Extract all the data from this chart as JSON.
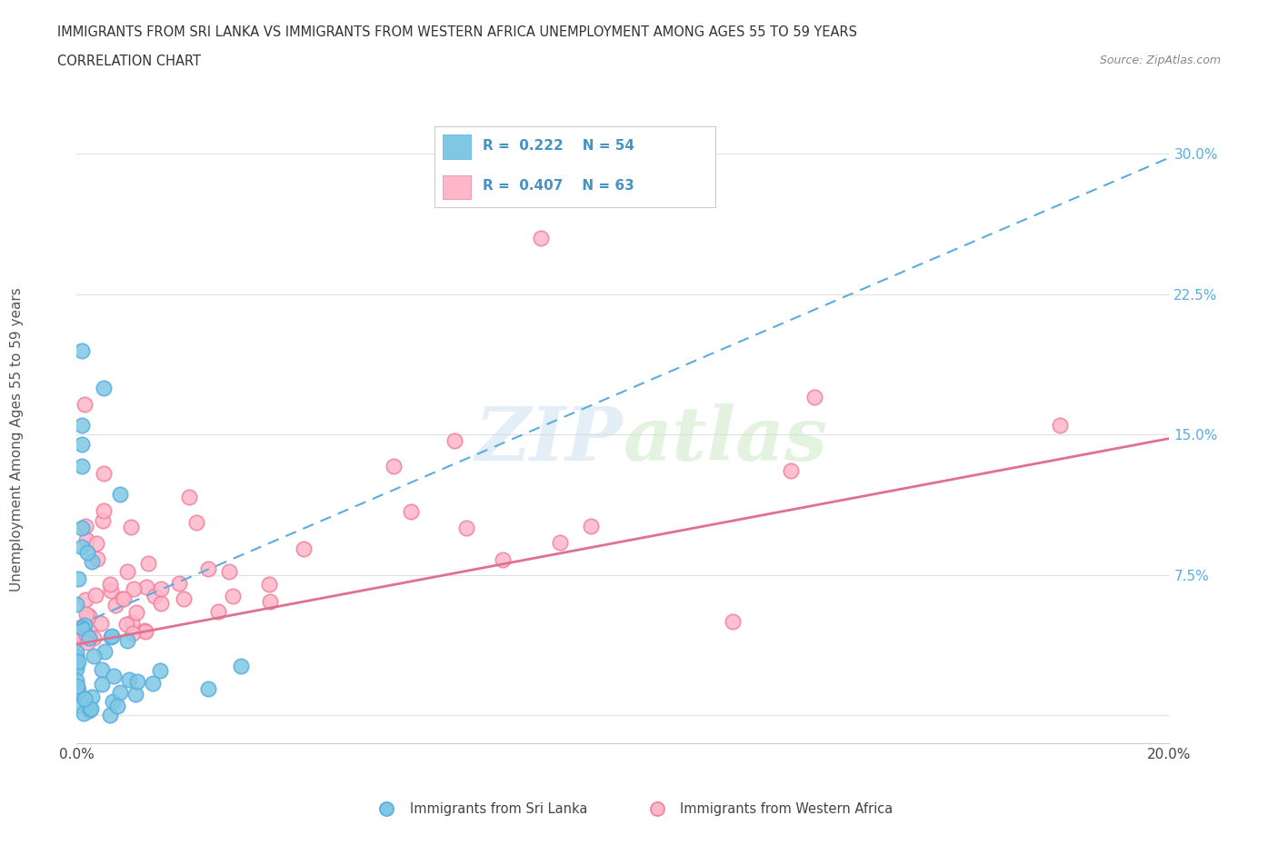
{
  "title_line1": "IMMIGRANTS FROM SRI LANKA VS IMMIGRANTS FROM WESTERN AFRICA UNEMPLOYMENT AMONG AGES 55 TO 59 YEARS",
  "title_line2": "CORRELATION CHART",
  "source_text": "Source: ZipAtlas.com",
  "ylabel": "Unemployment Among Ages 55 to 59 years",
  "xlim": [
    0.0,
    0.2
  ],
  "ylim": [
    -0.015,
    0.31
  ],
  "ytick_positions": [
    0.0,
    0.075,
    0.15,
    0.225,
    0.3
  ],
  "ytick_labels": [
    "",
    "7.5%",
    "15.0%",
    "22.5%",
    "30.0%"
  ],
  "sri_lanka_color": "#7ec8e3",
  "sri_lanka_edge": "#5aace0",
  "western_africa_color": "#ffb6c8",
  "western_africa_edge": "#f080a0",
  "sri_lanka_R": 0.222,
  "sri_lanka_N": 54,
  "western_africa_R": 0.407,
  "western_africa_N": 63,
  "legend_label_1": "Immigrants from Sri Lanka",
  "legend_label_2": "Immigrants from Western Africa",
  "sl_trend_x": [
    0.0,
    0.2
  ],
  "sl_trend_y": [
    0.048,
    0.298
  ],
  "wa_trend_x": [
    0.0,
    0.2
  ],
  "wa_trend_y": [
    0.038,
    0.148
  ],
  "sl_line_color": "#5aace0",
  "wa_line_color": "#e07090",
  "legend_R_N_color": "#4393c3",
  "grid_color": "#e0e0e0",
  "tick_label_color": "#5aace0"
}
